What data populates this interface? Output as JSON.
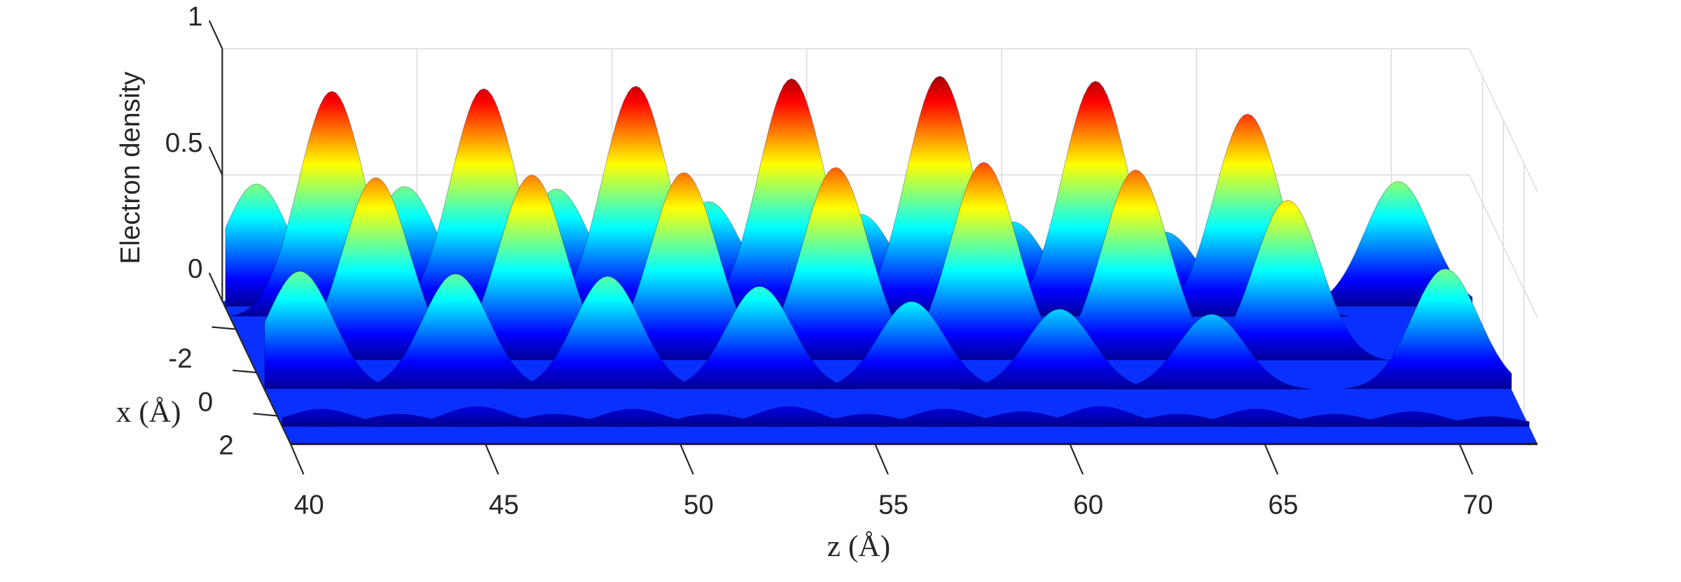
{
  "chart_data": {
    "type": "surface",
    "ylabel": "Electron density",
    "xlabel": "x (Å)",
    "zlabel": "z (Å)",
    "ylim": [
      0,
      1
    ],
    "yticks": [
      0,
      0.5,
      1
    ],
    "xlim": [
      -3.3,
      3.3
    ],
    "xticks": [
      -2,
      0,
      2
    ],
    "zlim": [
      40,
      72
    ],
    "zticks": [
      40,
      45,
      50,
      55,
      60,
      65,
      70
    ],
    "colormap": "jet",
    "grid": true,
    "series": [
      {
        "x": -3,
        "z": [
          40.8,
          44.6,
          48.5,
          52.4,
          56.3,
          60.2,
          64.1,
          70.1
        ],
        "values": [
          0.49,
          0.48,
          0.47,
          0.42,
          0.37,
          0.34,
          0.3,
          0.5
        ]
      },
      {
        "x": -2.5,
        "z": [
          42.6,
          46.5,
          50.4,
          54.4,
          58.2,
          62.2,
          66.1
        ],
        "values": [
          0.9,
          0.91,
          0.92,
          0.95,
          0.96,
          0.94,
          0.81
        ]
      },
      {
        "x": -0.5,
        "z": [
          43.2,
          47.2,
          51.1,
          55.0,
          58.8,
          62.7,
          66.6
        ],
        "values": [
          0.73,
          0.74,
          0.75,
          0.77,
          0.79,
          0.76,
          0.64
        ]
      },
      {
        "x": 0.8,
        "z": [
          40.9,
          44.9,
          48.8,
          52.7,
          56.6,
          60.4,
          64.3,
          70.3
        ],
        "values": [
          0.47,
          0.46,
          0.45,
          0.41,
          0.35,
          0.32,
          0.3,
          0.48
        ]
      },
      {
        "x": 2.5,
        "z": [
          41,
          43,
          45,
          47,
          49,
          51,
          53,
          55,
          57,
          59,
          61,
          63,
          65,
          67,
          69,
          71
        ],
        "values": [
          0.07,
          0.05,
          0.08,
          0.05,
          0.07,
          0.05,
          0.08,
          0.05,
          0.07,
          0.06,
          0.08,
          0.05,
          0.07,
          0.05,
          0.06,
          0.04
        ]
      }
    ]
  }
}
